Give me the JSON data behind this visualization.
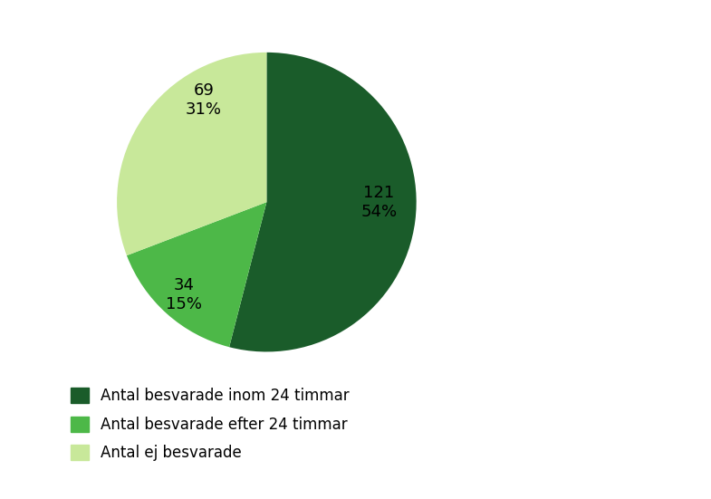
{
  "values": [
    121,
    34,
    69
  ],
  "labels": [
    "Antal besvarade inom 24 timmar",
    "Antal besvarade efter 24 timmar",
    "Antal ej besvarade"
  ],
  "counts": [
    121,
    34,
    69
  ],
  "percentages": [
    54,
    15,
    31
  ],
  "colors": [
    "#1a5c2a",
    "#4db848",
    "#c8e89a"
  ],
  "startangle": 90,
  "background_color": "#ffffff",
  "annotation_fontsize": 13,
  "legend_fontsize": 12
}
